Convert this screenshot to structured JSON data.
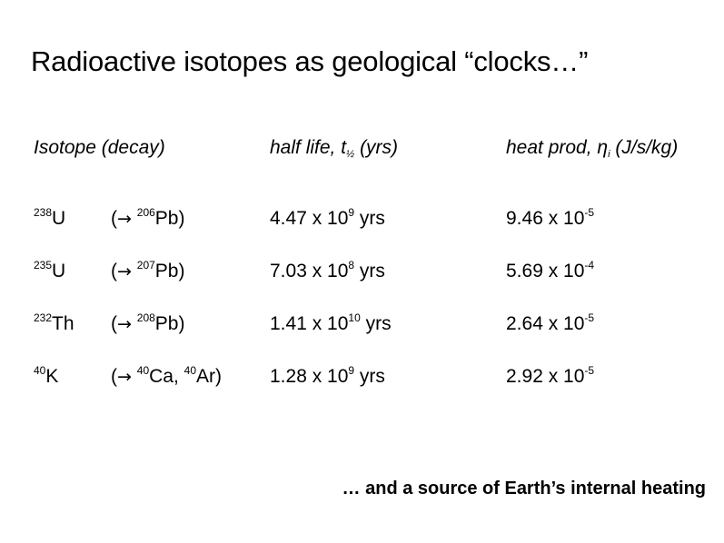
{
  "title": "Radioactive isotopes as geological “clocks…”",
  "table": {
    "headers": {
      "isotope": "Isotope (decay)",
      "halflife_pre": "half life, t",
      "halflife_sub": "½",
      "halflife_post": " (yrs)",
      "heat_pre": "heat prod, η",
      "heat_sub": "i",
      "heat_post": " (J/s/kg)"
    },
    "rows": [
      {
        "iso_mass": "238",
        "iso_sym": "U",
        "arrow": "→",
        "decay": [
          {
            "mass": "206",
            "sym": "Pb"
          }
        ],
        "decay_text": "(→ 206Pb)",
        "hl_base": "4.47 x 10",
        "hl_exp": "9",
        "hl_unit": " yrs",
        "hp_base": "9.46 x 10",
        "hp_exp": "-5"
      },
      {
        "iso_mass": "235",
        "iso_sym": "U",
        "arrow": "→",
        "decay": [
          {
            "mass": "207",
            "sym": "Pb"
          }
        ],
        "hl_base": "7.03 x 10",
        "hl_exp": "8",
        "hl_unit": " yrs",
        "hp_base": "5.69 x 10",
        "hp_exp": "-4"
      },
      {
        "iso_mass": "232",
        "iso_sym": "Th",
        "arrow": "→",
        "decay": [
          {
            "mass": "208",
            "sym": "Pb"
          }
        ],
        "hl_base": "1.41 x 10",
        "hl_exp": "10",
        "hl_unit": " yrs",
        "hp_base": "2.64 x 10",
        "hp_exp": "-5"
      },
      {
        "iso_mass": "40",
        "iso_sym": "K",
        "arrow": "→",
        "decay": [
          {
            "mass": "40",
            "sym": "Ca"
          },
          {
            "mass": "40",
            "sym": "Ar"
          }
        ],
        "hl_base": "1.28 x 10",
        "hl_exp": "9",
        "hl_unit": " yrs",
        "hp_base": "2.92 x 10",
        "hp_exp": "-5"
      }
    ]
  },
  "footnote": "… and a source of Earth’s internal heating"
}
